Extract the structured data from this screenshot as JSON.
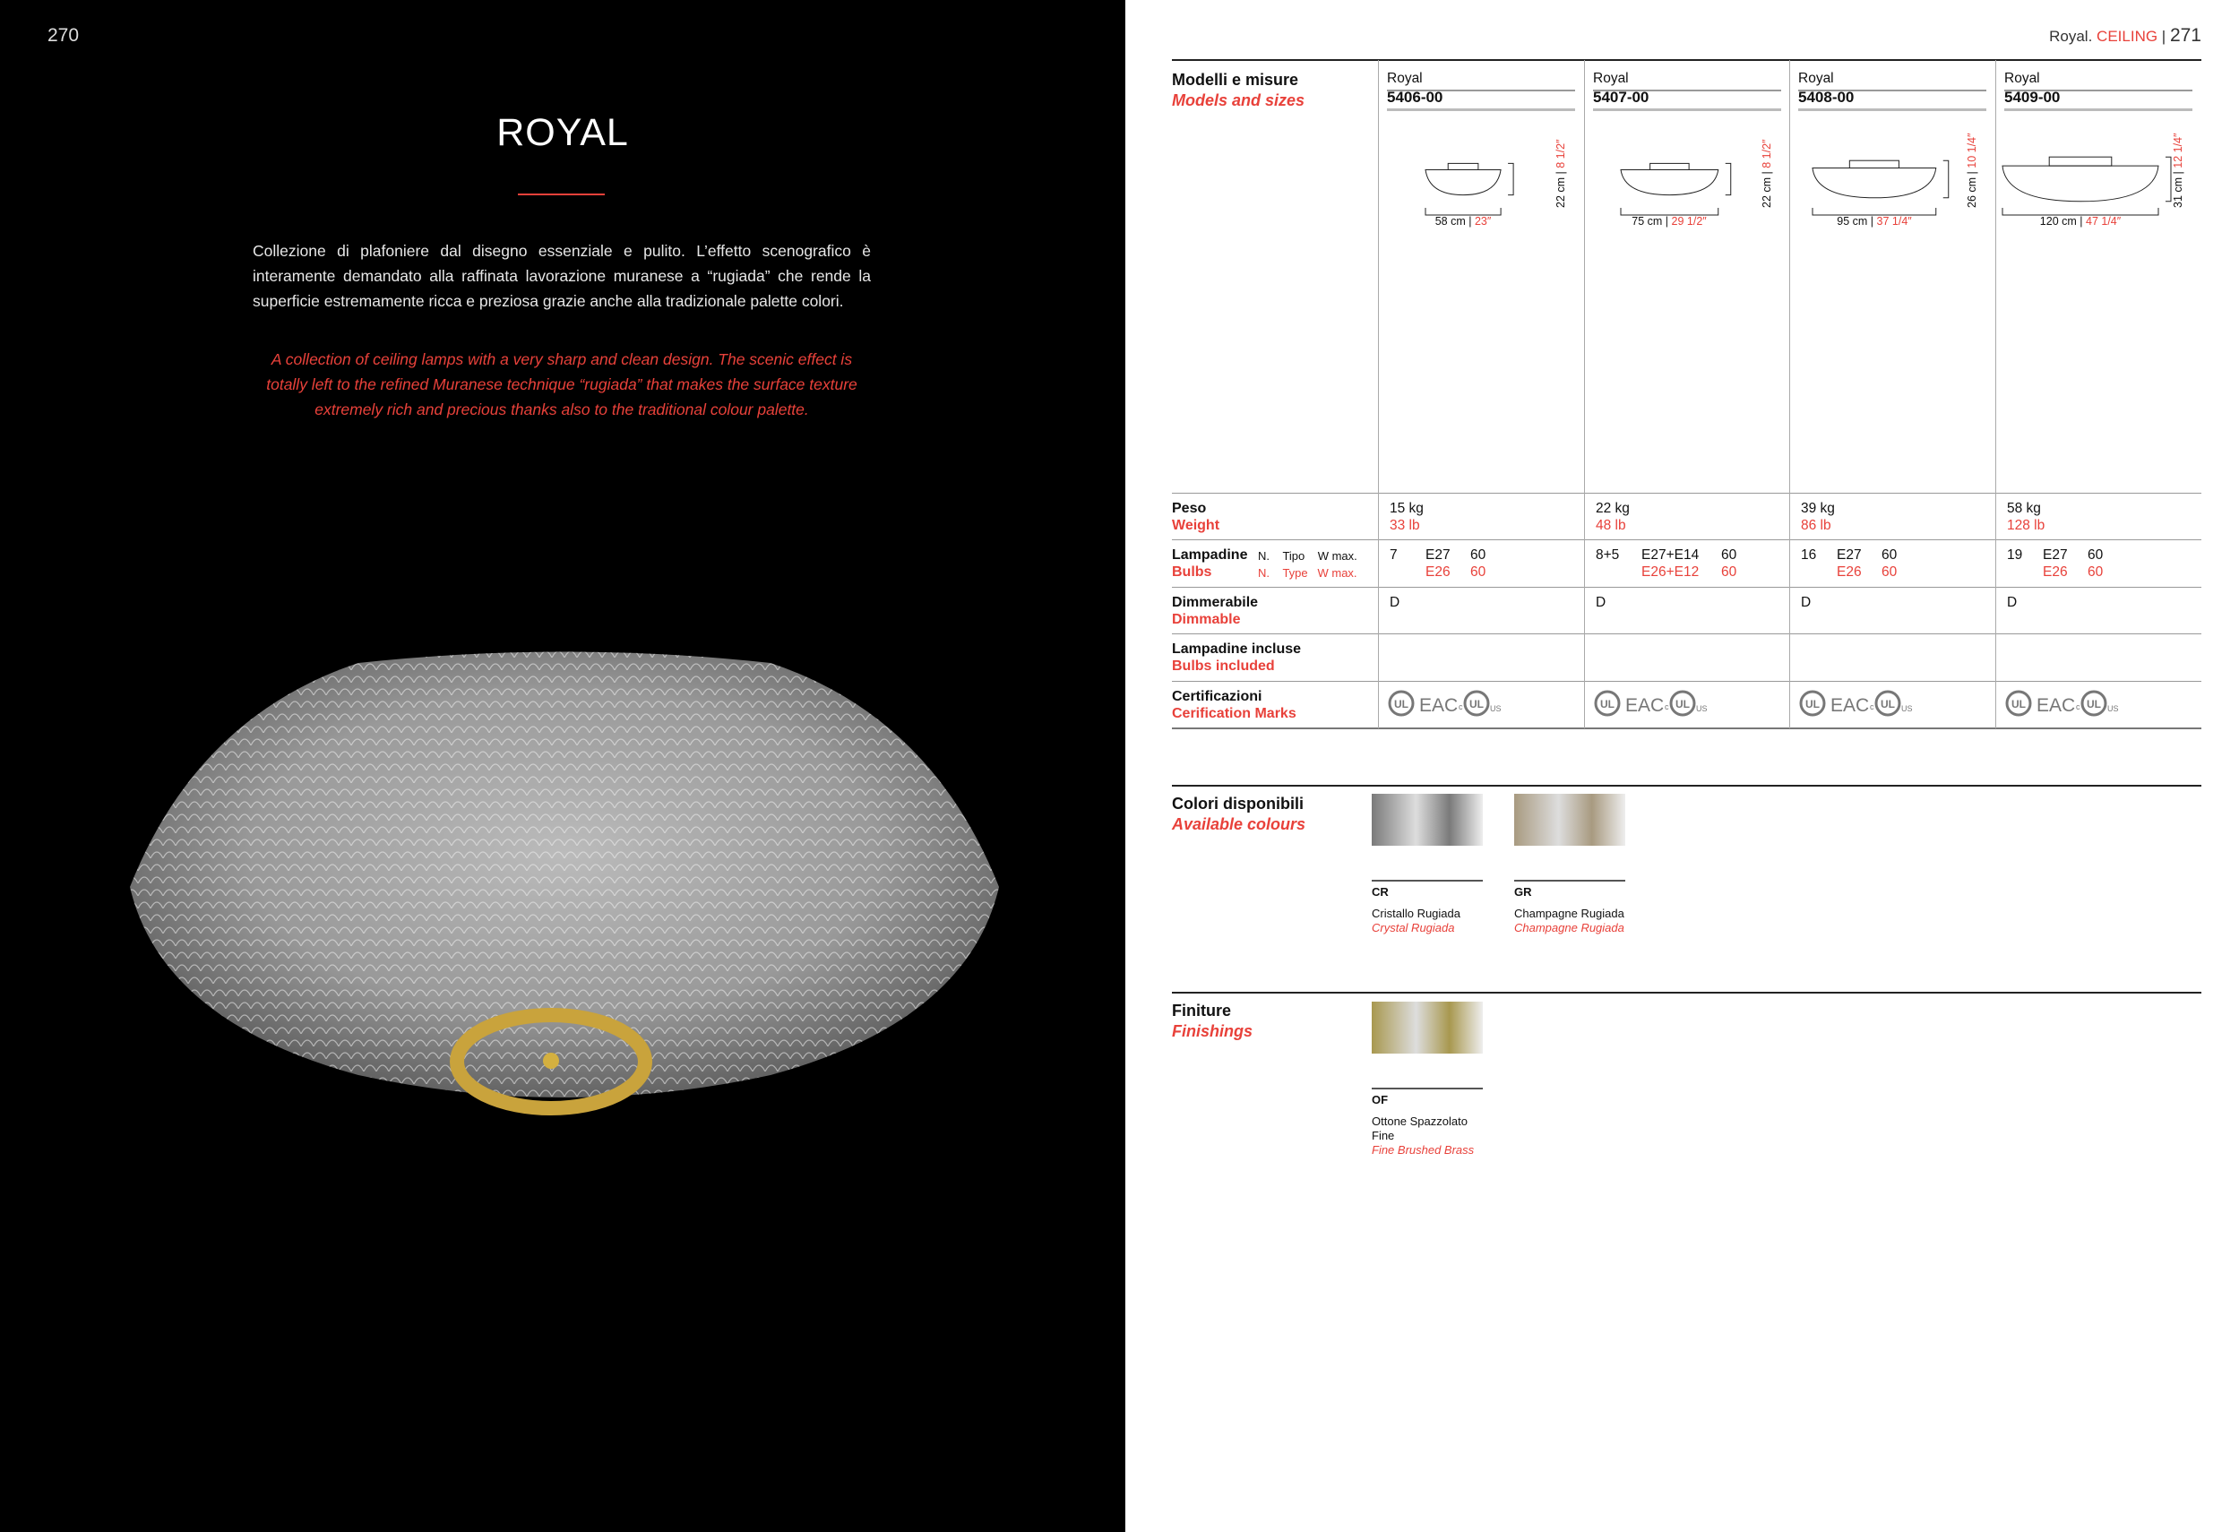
{
  "left_page": {
    "page_number": "270",
    "title": "ROYAL",
    "description_it": "Collezione di plafoniere dal disegno essenziale e pulito. L’effetto scenografico è interamente demandato alla raffinata lavorazione muranese a “rugiada” che rende la superficie estremamente ricca e preziosa grazie anche alla tradizionale palette colori.",
    "description_en": "A collection of ceiling lamps with a very sharp and clean design. The scenic effect is totally left to the refined Muranese technique “rugiada” that makes the surface texture extremely rich and precious thanks also to the traditional colour palette."
  },
  "right_page": {
    "header_name": "Royal.",
    "header_category": "CEILING",
    "page_number": "271"
  },
  "colors": {
    "accent": "#e8413a",
    "left_background": "#000000"
  },
  "table": {
    "labels": {
      "models_it": "Modelli e misure",
      "models_en": "Models and sizes",
      "weight_it": "Peso",
      "weight_en": "Weight",
      "bulbs_it": "Lampadine",
      "bulbs_en": "Bulbs",
      "n_it": "N.",
      "type_it": "Tipo",
      "w_it": "W max.",
      "n_en": "N.",
      "type_en": "Type",
      "w_en": "W max.",
      "dimm_it": "Dimmerabile",
      "dimm_en": "Dimmable",
      "incl_it": "Lampadine incluse",
      "incl_en": "Bulbs included",
      "cert_it": "Certificazioni",
      "cert_en": "Cerification Marks"
    },
    "models": [
      {
        "name": "Royal",
        "code": "5406-00",
        "width_cm": "58 cm",
        "width_in": "23″",
        "height_cm": "22 cm",
        "height_in": "8 1/2″",
        "kg": "15 kg",
        "lb": "33 lb",
        "n": "7",
        "type": "E27",
        "type_us": "E26",
        "w": "60",
        "w_us": "60",
        "dimmable": "D",
        "certs": "UL EAC cULus"
      },
      {
        "name": "Royal",
        "code": "5407-00",
        "width_cm": "75 cm",
        "width_in": "29 1/2″",
        "height_cm": "22 cm",
        "height_in": "8 1/2″",
        "kg": "22 kg",
        "lb": "48 lb",
        "n": "8+5",
        "type": "E27+E14",
        "type_us": "E26+E12",
        "w": "60",
        "w_us": "60",
        "dimmable": "D",
        "certs": "UL EAC cULus"
      },
      {
        "name": "Royal",
        "code": "5408-00",
        "width_cm": "95 cm",
        "width_in": "37 1/4″",
        "height_cm": "26 cm",
        "height_in": "10 1/4″",
        "kg": "39 kg",
        "lb": "86 lb",
        "n": "16",
        "type": "E27",
        "type_us": "E26",
        "w": "60",
        "w_us": "60",
        "dimmable": "D",
        "certs": "UL EAC cULus"
      },
      {
        "name": "Royal",
        "code": "5409-00",
        "width_cm": "120 cm",
        "width_in": "47 1/4″",
        "height_cm": "31 cm",
        "height_in": "12 1/4″",
        "kg": "58 kg",
        "lb": "128 lb",
        "n": "19",
        "type": "E27",
        "type_us": "E26",
        "w": "60",
        "w_us": "60",
        "dimmable": "D",
        "certs": "UL EAC cULus"
      }
    ]
  },
  "colours": {
    "title_it": "Colori disponibili",
    "title_en": "Available colours",
    "items": [
      {
        "code": "CR",
        "name_it": "Cristallo Rugiada",
        "name_en": "Crystal Rugiada",
        "swatch": "#7a7a7a"
      },
      {
        "code": "GR",
        "name_it": "Champagne Rugiada",
        "name_en": "Champagne Rugiada",
        "swatch": "#a89a80"
      }
    ]
  },
  "finishes": {
    "title_it": "Finiture",
    "title_en": "Finishings",
    "items": [
      {
        "code": "OF",
        "name_it": "Ottone Spazzolato Fine",
        "name_en": "Fine Brushed Brass",
        "swatch": "#a8984f"
      }
    ]
  }
}
